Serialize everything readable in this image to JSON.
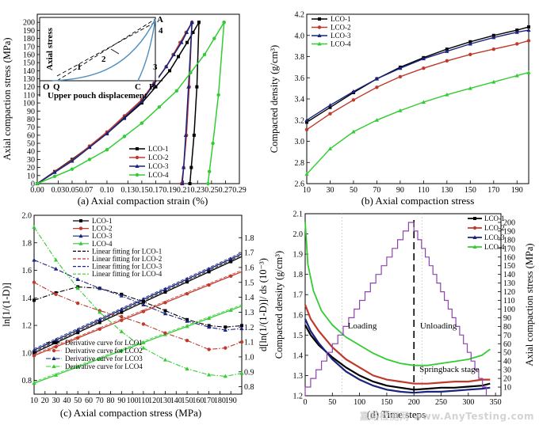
{
  "colors": {
    "LCO-1": "#000000",
    "LCO-2": "#c0392b",
    "LCO-3": "#1a237e",
    "LCO-4": "#33cc33",
    "stress": "#8e44ad",
    "inset": "#4f8fc0"
  },
  "watermark": "嘉峪检测网 www.AnyTesting.com",
  "chart_data": [
    {
      "type": "line",
      "id": "a",
      "caption": "(a) Axial compaction strain (%)",
      "xlabel": "",
      "ylabel": "Axial compaction stress (MPa)",
      "xlim": [
        0,
        0.29
      ],
      "ylim": [
        0,
        210
      ],
      "xticks": [
        "0.00",
        "0.03",
        "0.05",
        "0.07",
        "0.10",
        "0.13",
        "0.15",
        "0.17",
        "0.19",
        "0.21",
        "0.23",
        "0.25",
        "0.27",
        "0.29"
      ],
      "yticks": [
        "0",
        "10",
        "20",
        "30",
        "40",
        "50",
        "60",
        "70",
        "80",
        "90",
        "100",
        "110",
        "120",
        "130",
        "140",
        "150",
        "160",
        "170",
        "180",
        "190",
        "200"
      ],
      "legend": [
        "LCO-1",
        "LCO-2",
        "LCO-3",
        "LCO-4"
      ],
      "series": [
        {
          "name": "LCO-1",
          "load": [
            [
              0,
              0
            ],
            [
              0.05,
              30
            ],
            [
              0.1,
              62
            ],
            [
              0.15,
              100
            ],
            [
              0.19,
              140
            ],
            [
              0.215,
              175
            ],
            [
              0.232,
              200
            ]
          ],
          "unload": [
            [
              0.232,
              200
            ],
            [
              0.229,
              120
            ],
            [
              0.225,
              60
            ],
            [
              0.221,
              20
            ],
            [
              0.219,
              0
            ]
          ]
        },
        {
          "name": "LCO-2",
          "load": [
            [
              0,
              0
            ],
            [
              0.05,
              29
            ],
            [
              0.1,
              64
            ],
            [
              0.15,
              104
            ],
            [
              0.185,
              145
            ],
            [
              0.205,
              175
            ],
            [
              0.222,
              200
            ]
          ],
          "unload": [
            [
              0.222,
              200
            ],
            [
              0.218,
              120
            ],
            [
              0.214,
              60
            ],
            [
              0.21,
              20
            ],
            [
              0.207,
              0
            ]
          ]
        },
        {
          "name": "LCO-3",
          "load": [
            [
              0,
              0
            ],
            [
              0.05,
              28
            ],
            [
              0.1,
              62
            ],
            [
              0.15,
              102
            ],
            [
              0.185,
              145
            ],
            [
              0.207,
              175
            ],
            [
              0.222,
              200
            ]
          ],
          "unload": [
            [
              0.222,
              200
            ],
            [
              0.217,
              120
            ],
            [
              0.213,
              60
            ],
            [
              0.21,
              20
            ],
            [
              0.208,
              0
            ]
          ]
        },
        {
          "name": "LCO-4",
          "load": [
            [
              0,
              0
            ],
            [
              0.05,
              18
            ],
            [
              0.1,
              42
            ],
            [
              0.15,
              75
            ],
            [
              0.2,
              115
            ],
            [
              0.24,
              160
            ],
            [
              0.268,
              200
            ]
          ],
          "unload": [
            [
              0.268,
              200
            ],
            [
              0.26,
              110
            ],
            [
              0.252,
              50
            ],
            [
              0.247,
              15
            ],
            [
              0.245,
              0
            ]
          ]
        }
      ],
      "inset": {
        "labels": [
          "A",
          "Q",
          "O",
          "C",
          "B",
          "1",
          "2",
          "3",
          "4"
        ],
        "ylabel": "Axial stress",
        "xlabel": "Upper pouch displacement"
      }
    },
    {
      "type": "line",
      "id": "b",
      "caption": "(b) Axial compaction stress",
      "xlabel": "",
      "ylabel": "Compacted density  (g/cm³)",
      "xlim": [
        10,
        200
      ],
      "ylim": [
        2.6,
        4.2
      ],
      "xticks": [
        "10",
        "30",
        "50",
        "70",
        "90",
        "110",
        "130",
        "150",
        "170",
        "190"
      ],
      "yticks": [
        "2.6",
        "2.8",
        "3.0",
        "3.2",
        "3.4",
        "3.6",
        "3.8",
        "4.0",
        "4.2"
      ],
      "legend": [
        "LCO-1",
        "LCO-2",
        "LCO-3",
        "LCO-4"
      ],
      "series": [
        {
          "name": "LCO-1",
          "x": [
            10,
            30,
            50,
            70,
            90,
            110,
            130,
            150,
            170,
            190,
            200
          ],
          "y": [
            3.18,
            3.32,
            3.46,
            3.59,
            3.7,
            3.79,
            3.87,
            3.94,
            4.0,
            4.05,
            4.08
          ]
        },
        {
          "name": "LCO-2",
          "x": [
            10,
            30,
            50,
            70,
            90,
            110,
            130,
            150,
            170,
            190,
            200
          ],
          "y": [
            3.11,
            3.26,
            3.39,
            3.51,
            3.61,
            3.69,
            3.76,
            3.82,
            3.87,
            3.92,
            3.95
          ]
        },
        {
          "name": "LCO-3",
          "x": [
            10,
            30,
            50,
            70,
            90,
            110,
            130,
            150,
            170,
            190,
            200
          ],
          "y": [
            3.2,
            3.34,
            3.47,
            3.59,
            3.69,
            3.78,
            3.85,
            3.92,
            3.98,
            4.03,
            4.05
          ]
        },
        {
          "name": "LCO-4",
          "x": [
            10,
            30,
            50,
            70,
            90,
            110,
            130,
            150,
            170,
            190,
            200
          ],
          "y": [
            2.69,
            2.93,
            3.09,
            3.2,
            3.29,
            3.37,
            3.44,
            3.5,
            3.56,
            3.62,
            3.65
          ]
        }
      ]
    },
    {
      "type": "line",
      "id": "c",
      "caption": "(c) Axial compaction stress (MPa)",
      "ylabel_left": "ln[1/(1-D)]",
      "ylabel_right": "d[ln(1/(1-D)]/ ds (10⁻³)",
      "xlim": [
        10,
        200
      ],
      "ylim_left": [
        0.7,
        2.0
      ],
      "ylim_right": [
        0.75,
        1.95
      ],
      "xticks": [
        "10",
        "20",
        "30",
        "40",
        "50",
        "60",
        "70",
        "80",
        "90",
        "100",
        "110",
        "120",
        "130",
        "140",
        "150",
        "160",
        "170",
        "180",
        "190"
      ],
      "yticks_left": [
        "0.8",
        "1.0",
        "1.2",
        "1.4",
        "1.6",
        "1.8",
        "2.0"
      ],
      "yticks_right": [
        "0.8",
        "0.9",
        "1.0",
        "1.1",
        "1.2",
        "1.3",
        "1.4",
        "1.5",
        "1.6",
        "1.7",
        "1.8"
      ],
      "legend": [
        "LCO-1",
        "LCO-2",
        "LCO-3",
        "LCO-4",
        "Linear fitting for LCO-1",
        "Linear fitting for LCO-2",
        "Linear fitting for LCO-3",
        "Linear fitting for LCO-4"
      ],
      "legend2": [
        "Derivative curve for LCO1",
        "Derivative curve for LCO2",
        "Derivative curve for LCO3",
        "Derivative curve for LCO4"
      ],
      "series": [
        {
          "name": "LCO-1",
          "x": [
            10,
            200
          ],
          "y": [
            1.0,
            1.7
          ]
        },
        {
          "name": "LCO-2",
          "x": [
            10,
            200
          ],
          "y": [
            0.98,
            1.59
          ]
        },
        {
          "name": "LCO-3",
          "x": [
            10,
            200
          ],
          "y": [
            1.02,
            1.72
          ]
        },
        {
          "name": "LCO-4",
          "x": [
            10,
            200
          ],
          "y": [
            0.78,
            1.34
          ]
        }
      ],
      "derivatives": [
        {
          "name": "Derivative curve for LCO1",
          "x": [
            10,
            30,
            50,
            70,
            90,
            110,
            130,
            150,
            170,
            185,
            200
          ],
          "y": [
            1.38,
            1.43,
            1.47,
            1.46,
            1.42,
            1.37,
            1.31,
            1.25,
            1.21,
            1.2,
            1.21
          ]
        },
        {
          "name": "Derivative curve for LCO2",
          "x": [
            10,
            30,
            50,
            70,
            90,
            110,
            130,
            150,
            170,
            185,
            200
          ],
          "y": [
            1.5,
            1.42,
            1.36,
            1.31,
            1.27,
            1.22,
            1.16,
            1.11,
            1.05,
            1.06,
            1.1
          ]
        },
        {
          "name": "Derivative curve for LCO3",
          "x": [
            10,
            30,
            50,
            70,
            90,
            110,
            130,
            150,
            170,
            185,
            200
          ],
          "y": [
            1.65,
            1.59,
            1.52,
            1.46,
            1.41,
            1.35,
            1.29,
            1.24,
            1.2,
            1.18,
            1.19
          ]
        },
        {
          "name": "Derivative curve for LCO4",
          "x": [
            10,
            30,
            50,
            70,
            90,
            110,
            130,
            150,
            170,
            185,
            200
          ],
          "y": [
            1.87,
            1.65,
            1.46,
            1.3,
            1.17,
            1.06,
            0.98,
            0.92,
            0.88,
            0.87,
            0.89
          ]
        }
      ]
    },
    {
      "type": "line",
      "id": "d",
      "caption": "(d) Time steps",
      "ylabel_left": "Compacted density  (g/cm³)",
      "ylabel_right": "Axial compaction stress (MPa)",
      "xlim": [
        0,
        360
      ],
      "ylim_left": [
        1.2,
        2.1
      ],
      "ylim_right": [
        0,
        210
      ],
      "xticks": [
        "0",
        "50",
        "100",
        "150",
        "200",
        "250",
        "300",
        "350"
      ],
      "yticks_left": [
        "1.2",
        "1.3",
        "1.4",
        "1.5",
        "1.6",
        "1.7",
        "1.8",
        "1.9",
        "2.0",
        "2.1"
      ],
      "yticks_right": [
        "10",
        "20",
        "30",
        "40",
        "50",
        "60",
        "70",
        "80",
        "90",
        "100",
        "110",
        "120",
        "130",
        "140",
        "150",
        "160",
        "170",
        "180",
        "190",
        "200"
      ],
      "legend": [
        "LCO-1",
        "LCO-2",
        "LCO-3",
        "LCO-4"
      ],
      "annotations": [
        "Loading",
        "Unloading",
        "Springback stage"
      ],
      "series": [
        {
          "name": "LCO-1",
          "x": [
            0,
            10,
            25,
            50,
            75,
            100,
            125,
            150,
            175,
            200,
            225,
            250,
            275,
            300,
            325,
            340
          ],
          "y": [
            1.55,
            1.5,
            1.45,
            1.39,
            1.34,
            1.3,
            1.27,
            1.25,
            1.24,
            1.23,
            1.235,
            1.24,
            1.24,
            1.245,
            1.25,
            1.26
          ]
        },
        {
          "name": "LCO-2",
          "x": [
            0,
            10,
            25,
            50,
            75,
            100,
            125,
            150,
            175,
            200,
            225,
            250,
            275,
            300,
            325,
            340
          ],
          "y": [
            1.65,
            1.58,
            1.52,
            1.44,
            1.38,
            1.34,
            1.3,
            1.28,
            1.27,
            1.26,
            1.26,
            1.265,
            1.27,
            1.27,
            1.28,
            1.28
          ]
        },
        {
          "name": "LCO-3",
          "x": [
            0,
            10,
            25,
            50,
            75,
            100,
            125,
            150,
            175,
            200,
            225,
            250,
            275,
            300,
            325,
            340
          ],
          "y": [
            1.58,
            1.52,
            1.46,
            1.38,
            1.32,
            1.28,
            1.25,
            1.23,
            1.22,
            1.215,
            1.22,
            1.22,
            1.225,
            1.23,
            1.235,
            1.24
          ]
        },
        {
          "name": "LCO-4",
          "x": [
            0,
            5,
            15,
            30,
            50,
            75,
            100,
            125,
            150,
            175,
            200,
            225,
            250,
            275,
            300,
            325,
            340
          ],
          "y": [
            2.06,
            1.85,
            1.72,
            1.62,
            1.55,
            1.49,
            1.45,
            1.41,
            1.38,
            1.36,
            1.35,
            1.35,
            1.36,
            1.37,
            1.38,
            1.4,
            1.43
          ]
        },
        {
          "name": "Axial compaction stress",
          "x": [
            0,
            200,
            340
          ],
          "y": [
            0,
            200,
            0
          ]
        }
      ]
    }
  ]
}
